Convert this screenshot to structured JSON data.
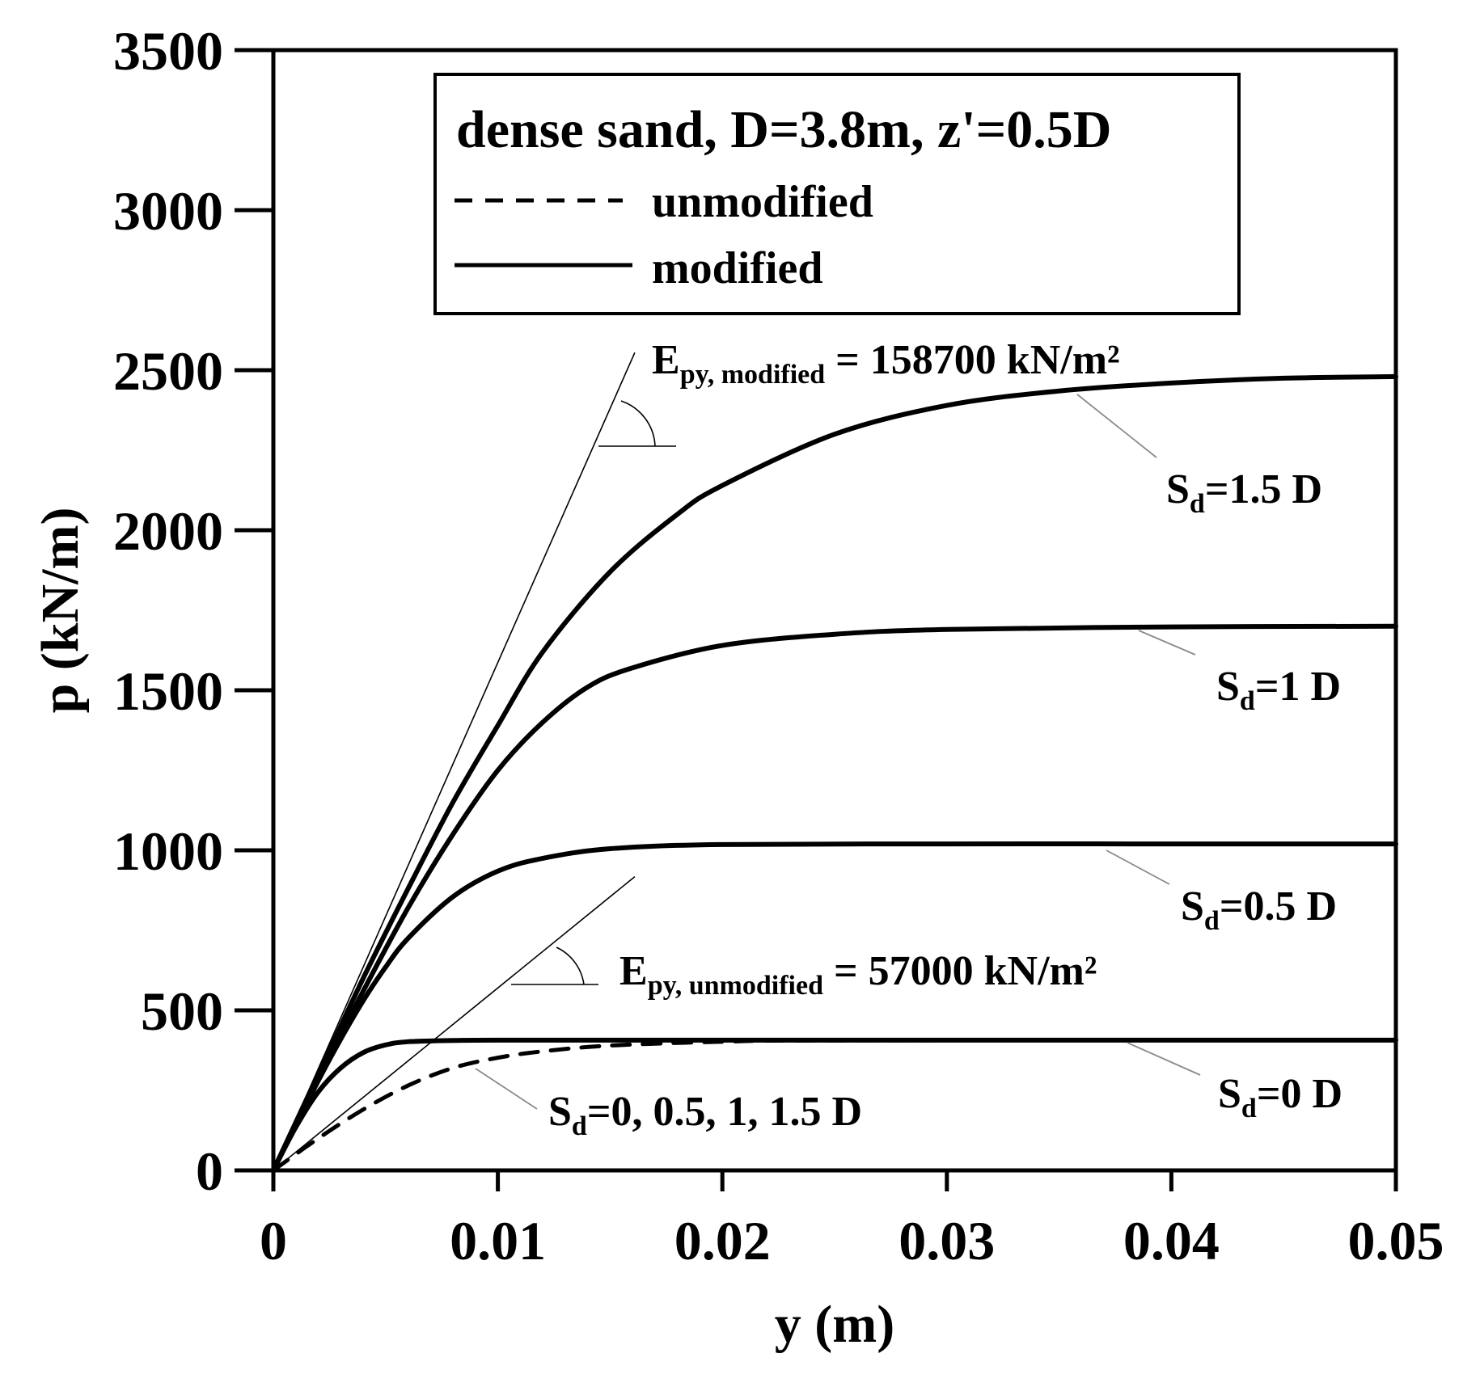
{
  "chart_data": {
    "type": "line",
    "xlabel": "y (m)",
    "ylabel": "p (kN/m)",
    "xlim": [
      0,
      0.05
    ],
    "ylim": [
      0,
      3500
    ],
    "xticks": [
      0,
      0.01,
      0.02,
      0.03,
      0.04,
      0.05
    ],
    "xtick_labels": [
      "0",
      "0.01",
      "0.02",
      "0.03",
      "0.04",
      "0.05"
    ],
    "yticks": [
      0,
      500,
      1000,
      1500,
      2000,
      2500,
      3000,
      3500
    ],
    "ytick_labels": [
      "0",
      "500",
      "1000",
      "1500",
      "2000",
      "2500",
      "3000",
      "3500"
    ],
    "grid": false,
    "legend": {
      "title": "dense sand, D=3.8m, z'=0.5D",
      "placement": "top-center",
      "entries": [
        {
          "label": "unmodified",
          "style": "dashed"
        },
        {
          "label": "modified",
          "style": "solid"
        }
      ]
    },
    "series": [
      {
        "style": "solid",
        "x": [
          0,
          0.001,
          0.002,
          0.003,
          0.004,
          0.005,
          0.006,
          0.008,
          0.01,
          0.015,
          0.02,
          0.03,
          0.04,
          0.05
        ],
        "y": [
          0,
          135,
          245,
          320,
          368,
          392,
          402,
          406,
          407,
          407,
          407,
          407,
          407,
          407
        ]
      },
      {
        "style": "solid",
        "x": [
          0,
          0.001,
          0.002,
          0.003,
          0.004,
          0.005,
          0.006,
          0.008,
          0.01,
          0.012,
          0.015,
          0.02,
          0.03,
          0.04,
          0.05
        ],
        "y": [
          0,
          140,
          280,
          410,
          530,
          635,
          725,
          855,
          935,
          975,
          1005,
          1018,
          1020,
          1020,
          1020
        ]
      },
      {
        "style": "solid",
        "x": [
          0,
          0.002,
          0.004,
          0.006,
          0.008,
          0.01,
          0.012,
          0.014,
          0.016,
          0.02,
          0.025,
          0.03,
          0.04,
          0.05
        ],
        "y": [
          0,
          290,
          560,
          820,
          1050,
          1250,
          1400,
          1510,
          1570,
          1640,
          1675,
          1690,
          1698,
          1700
        ]
      },
      {
        "style": "solid",
        "x": [
          0,
          0.002,
          0.004,
          0.006,
          0.008,
          0.01,
          0.012,
          0.015,
          0.018,
          0.02,
          0.025,
          0.03,
          0.035,
          0.04,
          0.045,
          0.05
        ],
        "y": [
          0,
          300,
          600,
          880,
          1150,
          1390,
          1620,
          1870,
          2050,
          2140,
          2300,
          2390,
          2435,
          2460,
          2475,
          2480
        ]
      },
      {
        "style": "dashed",
        "x": [
          0,
          0.002,
          0.004,
          0.006,
          0.008,
          0.01,
          0.012,
          0.015,
          0.02,
          0.025,
          0.05
        ],
        "y": [
          0,
          100,
          190,
          265,
          320,
          352,
          372,
          390,
          402,
          406,
          407
        ]
      }
    ],
    "annotations": [
      {
        "main": "E",
        "sub": "py, modified",
        "rest": " = 158700 kN/m²",
        "slope": 158700
      },
      {
        "main": "E",
        "sub": "py, unmodified",
        "rest": " = 57000 kN/m²",
        "slope": 57000
      },
      {
        "main": "S",
        "sub": "d",
        "rest": "=1.5 D"
      },
      {
        "main": "S",
        "sub": "d",
        "rest": "=1 D"
      },
      {
        "main": "S",
        "sub": "d",
        "rest": "=0.5 D"
      },
      {
        "main": "S",
        "sub": "d",
        "rest": "=0 D"
      },
      {
        "main": "S",
        "sub": "d",
        "rest": "=0, 0.5, 1, 1.5 D"
      }
    ]
  }
}
